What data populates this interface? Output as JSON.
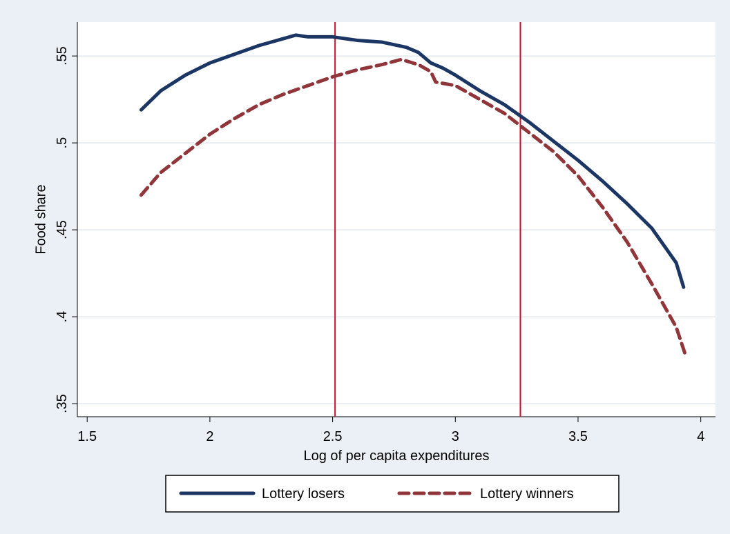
{
  "chart_data": {
    "type": "line",
    "x_label": "Log of per capita expenditures",
    "y_label": "Food share",
    "xlim": [
      1.46,
      4.06
    ],
    "ylim": [
      0.3425,
      0.5695
    ],
    "xticks": [
      1.5,
      2,
      2.5,
      3,
      3.5,
      4
    ],
    "yticks": [
      {
        "value": 0.35,
        "label": ".35"
      },
      {
        "value": 0.4,
        "label": ".4"
      },
      {
        "value": 0.45,
        "label": ".45"
      },
      {
        "value": 0.5,
        "label": ".5"
      },
      {
        "value": 0.55,
        "label": ".55"
      }
    ],
    "xlines": [
      2.51,
      3.265
    ],
    "xline_color": "#c8102e",
    "grid": true,
    "legend": "bottom",
    "series": [
      {
        "name": "Lottery losers",
        "color": "#1c3664",
        "dashed": false,
        "x": [
          1.72,
          1.8,
          1.9,
          2.0,
          2.1,
          2.2,
          2.3,
          2.35,
          2.4,
          2.5,
          2.6,
          2.7,
          2.8,
          2.85,
          2.9,
          2.95,
          3.0,
          3.1,
          3.2,
          3.25,
          3.3,
          3.4,
          3.5,
          3.6,
          3.7,
          3.8,
          3.9,
          3.93
        ],
        "values": [
          0.519,
          0.53,
          0.539,
          0.546,
          0.551,
          0.556,
          0.56,
          0.562,
          0.561,
          0.561,
          0.559,
          0.558,
          0.555,
          0.552,
          0.546,
          0.543,
          0.539,
          0.53,
          0.522,
          0.517,
          0.512,
          0.501,
          0.49,
          0.478,
          0.465,
          0.451,
          0.431,
          0.417
        ]
      },
      {
        "name": "Lottery winners",
        "color": "#90353a",
        "dashed": true,
        "x": [
          1.72,
          1.8,
          1.9,
          2.0,
          2.1,
          2.2,
          2.3,
          2.4,
          2.5,
          2.6,
          2.7,
          2.78,
          2.85,
          2.9,
          2.92,
          3.0,
          3.1,
          3.2,
          3.3,
          3.4,
          3.5,
          3.6,
          3.7,
          3.8,
          3.9,
          3.94
        ],
        "values": [
          0.47,
          0.483,
          0.494,
          0.505,
          0.514,
          0.522,
          0.528,
          0.533,
          0.538,
          0.542,
          0.545,
          0.548,
          0.545,
          0.541,
          0.535,
          0.533,
          0.525,
          0.517,
          0.506,
          0.495,
          0.481,
          0.463,
          0.443,
          0.419,
          0.394,
          0.377
        ]
      }
    ]
  }
}
